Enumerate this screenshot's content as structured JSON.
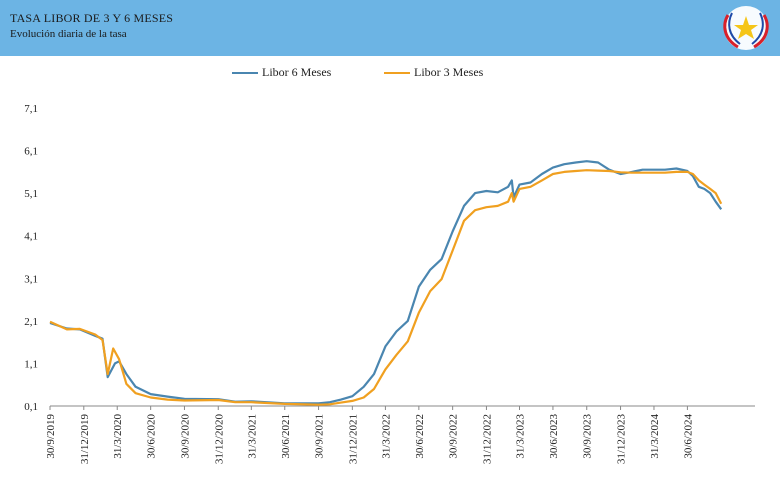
{
  "header": {
    "title": "TASA LIBOR DE 3 Y 6 MESES",
    "subtitle": "Evolución diaria de la tasa",
    "colors": {
      "band": "#6cb4e4",
      "star": "#f5c518",
      "wreath_red": "#d8202a",
      "wreath_blue": "#1f4aa8"
    }
  },
  "chart_data": {
    "type": "line",
    "title": "TASA LIBOR DE 3 Y 6 MESES",
    "subtitle": "Evolución diaria de la tasa",
    "xlabel": "",
    "ylabel": "",
    "ylim": [
      0.1,
      7.1
    ],
    "yticks": [
      "0,1",
      "1,1",
      "2,1",
      "3,1",
      "4,1",
      "5,1",
      "6,1",
      "7,1"
    ],
    "xlim": [
      "2019-09-30",
      "2024-12-31"
    ],
    "xticks": [
      "30/9/2019",
      "31/12/2019",
      "31/3/2020",
      "30/6/2020",
      "30/9/2020",
      "31/12/2020",
      "31/3/2021",
      "30/6/2021",
      "30/9/2021",
      "31/12/2021",
      "31/3/2022",
      "30/6/2022",
      "30/9/2022",
      "31/12/2022",
      "31/3/2023",
      "30/6/2023",
      "30/9/2023",
      "31/12/2023",
      "31/3/2024",
      "30/6/2024"
    ],
    "grid": false,
    "legend": "top-center",
    "series": [
      {
        "name": "Libor 6 Meses",
        "color": "#4a86b0",
        "points": [
          [
            "2019-09-30",
            2.05
          ],
          [
            "2019-11-15",
            1.92
          ],
          [
            "2019-12-20",
            1.9
          ],
          [
            "2020-01-31",
            1.75
          ],
          [
            "2020-02-20",
            1.68
          ],
          [
            "2020-03-05",
            0.78
          ],
          [
            "2020-03-25",
            1.1
          ],
          [
            "2020-04-05",
            1.15
          ],
          [
            "2020-04-25",
            0.85
          ],
          [
            "2020-05-20",
            0.55
          ],
          [
            "2020-06-30",
            0.38
          ],
          [
            "2020-08-15",
            0.32
          ],
          [
            "2020-09-30",
            0.27
          ],
          [
            "2020-12-31",
            0.26
          ],
          [
            "2021-02-15",
            0.2
          ],
          [
            "2021-03-31",
            0.21
          ],
          [
            "2021-06-30",
            0.16
          ],
          [
            "2021-09-30",
            0.16
          ],
          [
            "2021-10-31",
            0.19
          ],
          [
            "2021-11-30",
            0.25
          ],
          [
            "2021-12-31",
            0.33
          ],
          [
            "2022-01-31",
            0.55
          ],
          [
            "2022-02-28",
            0.85
          ],
          [
            "2022-03-31",
            1.5
          ],
          [
            "2022-04-30",
            1.85
          ],
          [
            "2022-05-31",
            2.1
          ],
          [
            "2022-06-30",
            2.9
          ],
          [
            "2022-07-31",
            3.3
          ],
          [
            "2022-08-31",
            3.55
          ],
          [
            "2022-09-30",
            4.2
          ],
          [
            "2022-10-31",
            4.8
          ],
          [
            "2022-11-30",
            5.1
          ],
          [
            "2022-12-31",
            5.15
          ],
          [
            "2023-01-31",
            5.12
          ],
          [
            "2023-02-28",
            5.25
          ],
          [
            "2023-03-10",
            5.4
          ],
          [
            "2023-03-15",
            5.0
          ],
          [
            "2023-03-31",
            5.3
          ],
          [
            "2023-04-30",
            5.35
          ],
          [
            "2023-05-31",
            5.55
          ],
          [
            "2023-06-30",
            5.7
          ],
          [
            "2023-07-31",
            5.78
          ],
          [
            "2023-08-31",
            5.82
          ],
          [
            "2023-09-30",
            5.85
          ],
          [
            "2023-10-31",
            5.82
          ],
          [
            "2023-11-30",
            5.65
          ],
          [
            "2023-12-31",
            5.55
          ],
          [
            "2024-01-31",
            5.6
          ],
          [
            "2024-02-29",
            5.65
          ],
          [
            "2024-03-31",
            5.65
          ],
          [
            "2024-04-30",
            5.65
          ],
          [
            "2024-05-31",
            5.68
          ],
          [
            "2024-06-30",
            5.62
          ],
          [
            "2024-07-15",
            5.5
          ],
          [
            "2024-07-31",
            5.25
          ],
          [
            "2024-08-15",
            5.2
          ],
          [
            "2024-08-31",
            5.1
          ],
          [
            "2024-09-15",
            4.9
          ],
          [
            "2024-09-30",
            4.72
          ]
        ]
      },
      {
        "name": "Libor 3 Meses",
        "color": "#f0a020",
        "points": [
          [
            "2019-09-30",
            2.08
          ],
          [
            "2019-11-15",
            1.9
          ],
          [
            "2019-12-20",
            1.91
          ],
          [
            "2020-01-31",
            1.78
          ],
          [
            "2020-02-20",
            1.65
          ],
          [
            "2020-03-05",
            0.85
          ],
          [
            "2020-03-20",
            1.45
          ],
          [
            "2020-04-05",
            1.2
          ],
          [
            "2020-04-25",
            0.62
          ],
          [
            "2020-05-20",
            0.4
          ],
          [
            "2020-06-30",
            0.3
          ],
          [
            "2020-08-15",
            0.25
          ],
          [
            "2020-09-30",
            0.23
          ],
          [
            "2020-12-31",
            0.24
          ],
          [
            "2021-02-15",
            0.19
          ],
          [
            "2021-03-31",
            0.19
          ],
          [
            "2021-06-30",
            0.15
          ],
          [
            "2021-09-30",
            0.13
          ],
          [
            "2021-10-31",
            0.14
          ],
          [
            "2021-11-30",
            0.18
          ],
          [
            "2021-12-31",
            0.22
          ],
          [
            "2022-01-31",
            0.3
          ],
          [
            "2022-02-28",
            0.5
          ],
          [
            "2022-03-31",
            0.96
          ],
          [
            "2022-04-30",
            1.3
          ],
          [
            "2022-05-31",
            1.62
          ],
          [
            "2022-06-30",
            2.29
          ],
          [
            "2022-07-31",
            2.8
          ],
          [
            "2022-08-31",
            3.08
          ],
          [
            "2022-09-30",
            3.75
          ],
          [
            "2022-10-31",
            4.45
          ],
          [
            "2022-11-30",
            4.7
          ],
          [
            "2022-12-31",
            4.77
          ],
          [
            "2023-01-31",
            4.8
          ],
          [
            "2023-02-28",
            4.9
          ],
          [
            "2023-03-10",
            5.1
          ],
          [
            "2023-03-15",
            4.9
          ],
          [
            "2023-03-31",
            5.2
          ],
          [
            "2023-04-30",
            5.25
          ],
          [
            "2023-05-31",
            5.4
          ],
          [
            "2023-06-30",
            5.55
          ],
          [
            "2023-07-31",
            5.6
          ],
          [
            "2023-08-31",
            5.62
          ],
          [
            "2023-09-30",
            5.64
          ],
          [
            "2023-10-31",
            5.63
          ],
          [
            "2023-11-30",
            5.62
          ],
          [
            "2023-12-31",
            5.59
          ],
          [
            "2024-01-31",
            5.58
          ],
          [
            "2024-02-29",
            5.58
          ],
          [
            "2024-03-31",
            5.58
          ],
          [
            "2024-04-30",
            5.58
          ],
          [
            "2024-05-31",
            5.6
          ],
          [
            "2024-06-30",
            5.6
          ],
          [
            "2024-07-15",
            5.55
          ],
          [
            "2024-07-31",
            5.4
          ],
          [
            "2024-08-15",
            5.3
          ],
          [
            "2024-08-31",
            5.2
          ],
          [
            "2024-09-15",
            5.1
          ],
          [
            "2024-09-30",
            4.85
          ]
        ]
      }
    ]
  }
}
